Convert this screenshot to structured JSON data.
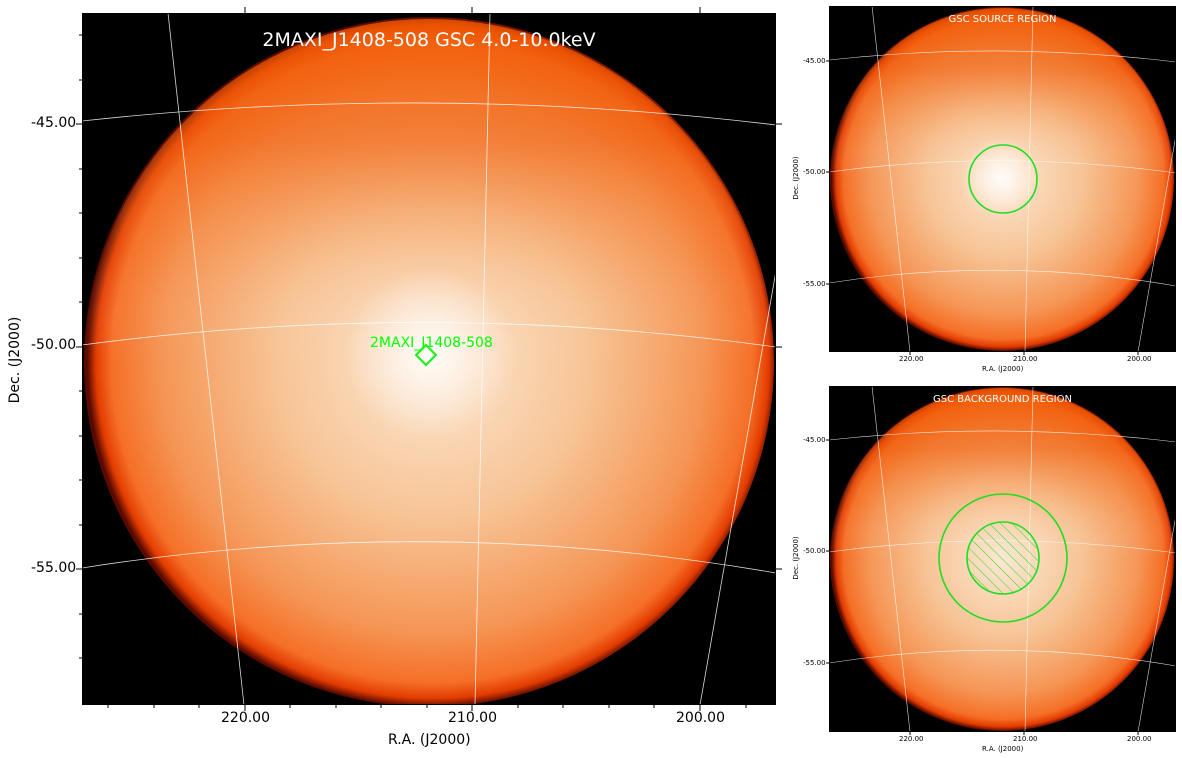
{
  "main": {
    "title": "2MAXI_J1408-508 GSC 4.0-10.0keV",
    "source_label": "2MAXI_J1408-508",
    "xlabel": "R.A. (J2000)",
    "ylabel": "Dec. (J2000)",
    "xticks": [
      "220.00",
      "210.00",
      "200.00"
    ],
    "yticks": [
      "-45.00",
      "-50.00",
      "-55.00"
    ]
  },
  "source_panel": {
    "title": "GSC SOURCE REGION",
    "xlabel": "R.A. (J2000)",
    "ylabel": "Dec. (J2000)",
    "xticks": [
      "220.00",
      "210.00",
      "200.00"
    ],
    "yticks": [
      "-45.00",
      "-50.00",
      "-55.00"
    ]
  },
  "background_panel": {
    "title": "GSC BACKGROUND REGION",
    "xlabel": "R.A. (J2000)",
    "ylabel": "Dec. (J2000)",
    "xticks": [
      "220.00",
      "210.00",
      "200.00"
    ],
    "yticks": [
      "-45.00",
      "-50.00",
      "-55.00"
    ]
  },
  "colors": {
    "background": "#000000",
    "disk_edge": "#ff5a00",
    "disk_center": "#fff1e0",
    "region": "#00ff00",
    "grid": "#ffffff"
  }
}
